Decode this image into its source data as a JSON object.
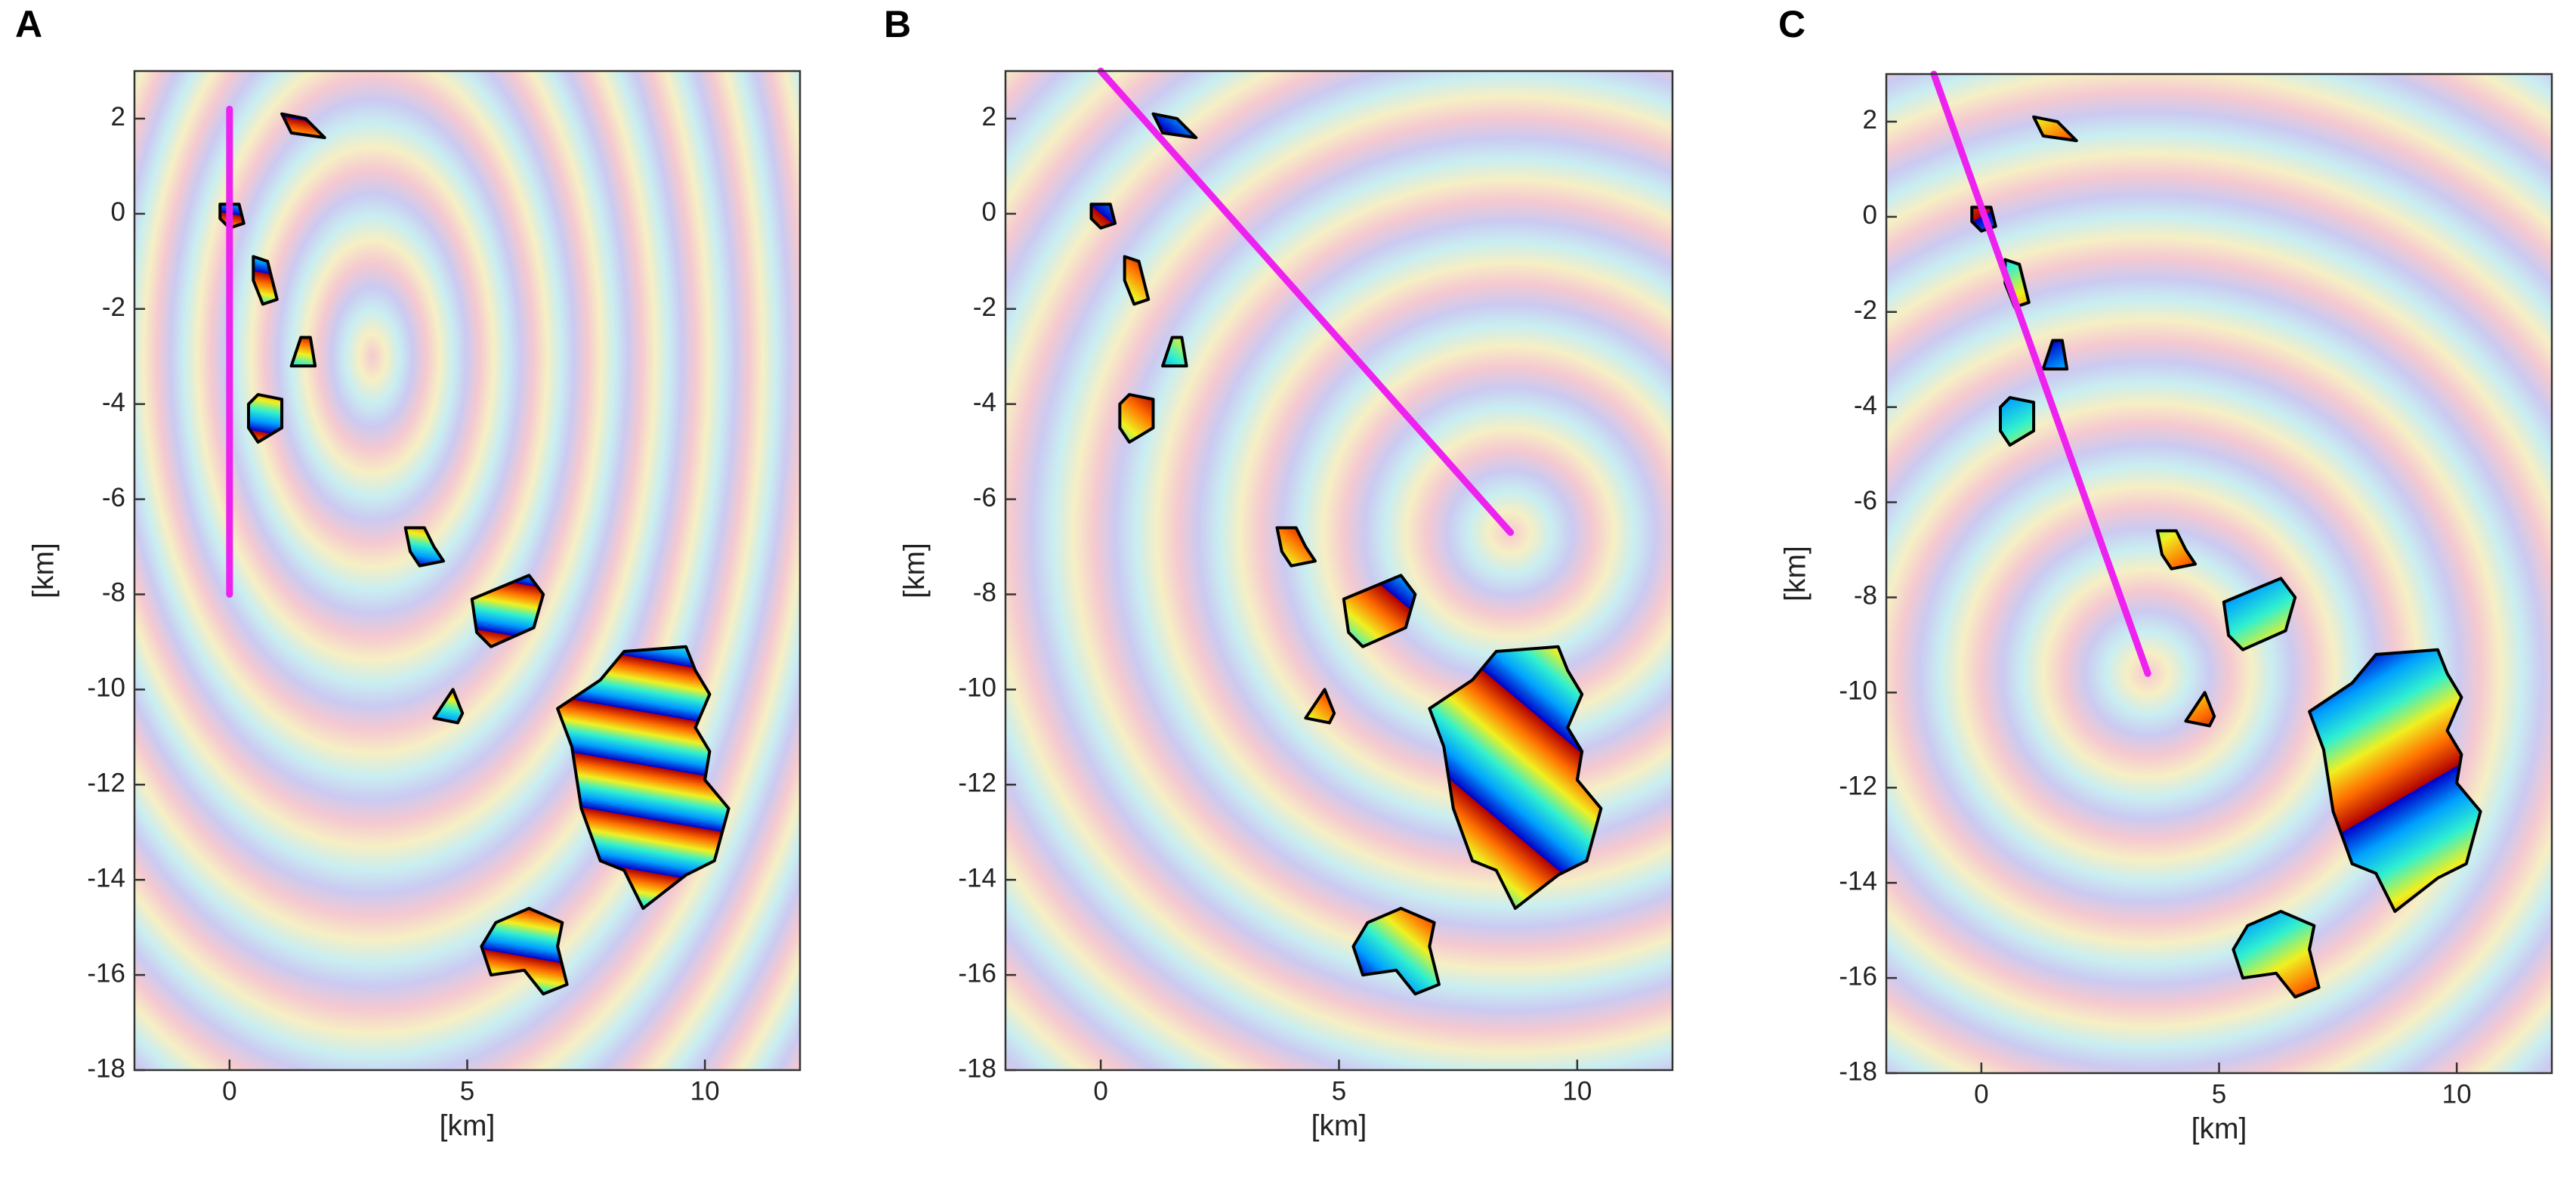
{
  "chart_data": [
    {
      "type": "line",
      "panel": "A",
      "xlabel": "[km]",
      "ylabel": "[km]",
      "xlim": [
        -2,
        12
      ],
      "ylim": [
        -18,
        3
      ],
      "xticks": [
        0,
        5,
        10
      ],
      "yticks": [
        -18,
        -16,
        -14,
        -12,
        -10,
        -8,
        -6,
        -4,
        -2,
        0,
        2
      ],
      "x": [
        0,
        0
      ],
      "values": [
        2.2,
        -8
      ],
      "color": "#ee22ee"
    },
    {
      "type": "line",
      "panel": "B",
      "xlabel": "[km]",
      "ylabel": "[km]",
      "xlim": [
        -2,
        12
      ],
      "ylim": [
        -18,
        3
      ],
      "xticks": [
        0,
        5,
        10
      ],
      "yticks": [
        -18,
        -16,
        -14,
        -12,
        -10,
        -8,
        -6,
        -4,
        -2,
        0,
        2
      ],
      "x": [
        0,
        8.6
      ],
      "values": [
        3,
        -6.7
      ],
      "color": "#ee22ee"
    },
    {
      "type": "line",
      "panel": "C",
      "xlabel": "[km]",
      "ylabel": "[km]",
      "xlim": [
        -2,
        12
      ],
      "ylim": [
        -18,
        3
      ],
      "xticks": [
        0,
        5,
        10
      ],
      "yticks": [
        -18,
        -16,
        -14,
        -12,
        -10,
        -8,
        -6,
        -4,
        -2,
        0,
        2
      ],
      "x": [
        -1,
        3.5
      ],
      "values": [
        3,
        -9.6
      ],
      "color": "#ee22ee"
    }
  ]
}
